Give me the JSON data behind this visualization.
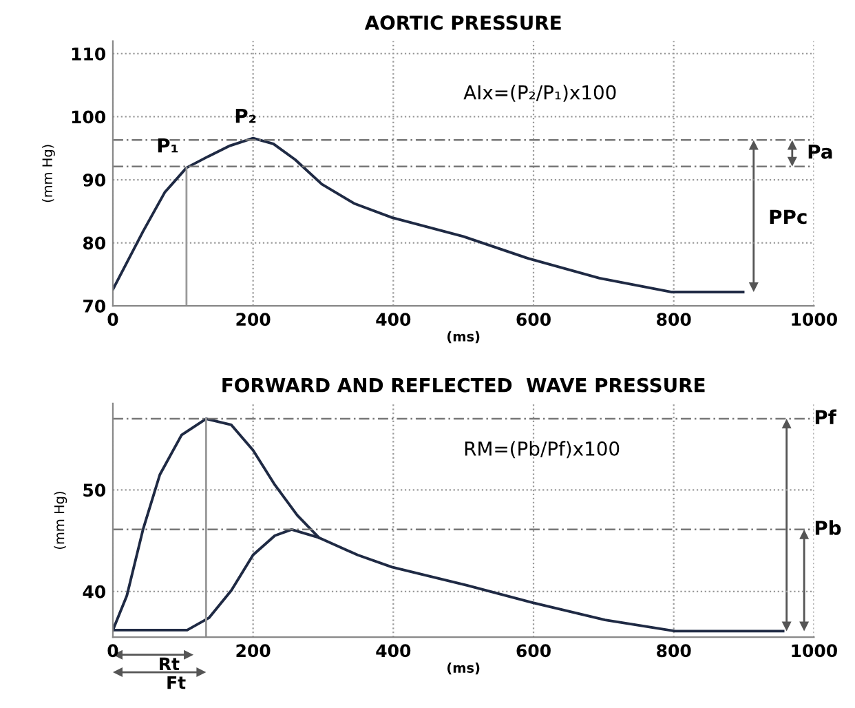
{
  "chart_data": [
    {
      "type": "line",
      "title": "AORTIC PRESSURE",
      "xlabel": "(ms)",
      "ylabel": "(mm Hg)",
      "xlim": [
        0,
        1000
      ],
      "xticks": [
        0,
        200,
        400,
        600,
        800,
        1000
      ],
      "ylim": [
        70,
        112
      ],
      "yticks": [
        70,
        80,
        90,
        100,
        110
      ],
      "grid": true,
      "marker": "none",
      "line_style": "solid",
      "series": [
        {
          "color": "#1f2a44",
          "x": [
            0,
            43,
            74,
            105,
            136,
            167,
            200,
            229,
            260,
            298,
            345,
            398,
            500,
            593,
            694,
            796,
            899
          ],
          "values": [
            72.6,
            81.8,
            88,
            91.9,
            93.7,
            95.4,
            96.6,
            95.7,
            93.2,
            89.3,
            86.2,
            84,
            81,
            77.5,
            74.4,
            72.2,
            72.2
          ]
        }
      ],
      "ref_lines": [
        {
          "axis": "y",
          "value": 96.3,
          "line_style": "dashed"
        },
        {
          "axis": "y",
          "value": 92.1,
          "line_style": "dashed"
        },
        {
          "axis": "x",
          "value": 105,
          "line_style": "solid"
        }
      ],
      "annotations": [
        {
          "text": "P₁",
          "x": 105,
          "y": 91.9
        },
        {
          "text": "P₂",
          "x": 200,
          "y": 96.6
        },
        "AIx=(P₂/P₁)x100",
        "Pa",
        "PPc"
      ]
    },
    {
      "type": "line",
      "title": "FORWARD AND REFLECTED  WAVE PRESSURE",
      "xlabel": "(ms)",
      "ylabel": "(mm Hg)",
      "xlim": [
        0,
        1000
      ],
      "xticks": [
        0,
        200,
        400,
        600,
        800,
        1000
      ],
      "ylim": [
        35.5,
        58.5
      ],
      "yticks": [
        40,
        50
      ],
      "grid": true,
      "marker": "none",
      "line_style": "solid",
      "series": [
        {
          "color": "#1f2a44",
          "x": [
            0,
            20,
            43,
            67,
            98,
            133,
            169,
            200,
            231,
            263,
            294
          ],
          "values": [
            36.2,
            39.6,
            46.1,
            51.5,
            55.4,
            57.0,
            56.4,
            53.9,
            50.5,
            47.5,
            45.3
          ]
        },
        {
          "color": "#1f2a44",
          "x": [
            0,
            106,
            137,
            169,
            200,
            231,
            255,
            294,
            349,
            398,
            505,
            599,
            702,
            802,
            956
          ],
          "values": [
            36.2,
            36.2,
            37.4,
            40.1,
            43.6,
            45.5,
            46.1,
            45.3,
            43.6,
            42.4,
            40.6,
            38.9,
            37.2,
            36.1,
            36.1
          ]
        }
      ],
      "ref_lines": [
        {
          "axis": "y",
          "value": 57.0,
          "line_style": "dashed"
        },
        {
          "axis": "y",
          "value": 46.1,
          "line_style": "dashed"
        },
        {
          "axis": "x",
          "value": 133,
          "line_style": "solid"
        }
      ],
      "annotations": [
        "RM=(Pb/Pf)x100",
        "Pf",
        "Pb",
        "Rt",
        "Ft"
      ]
    }
  ]
}
